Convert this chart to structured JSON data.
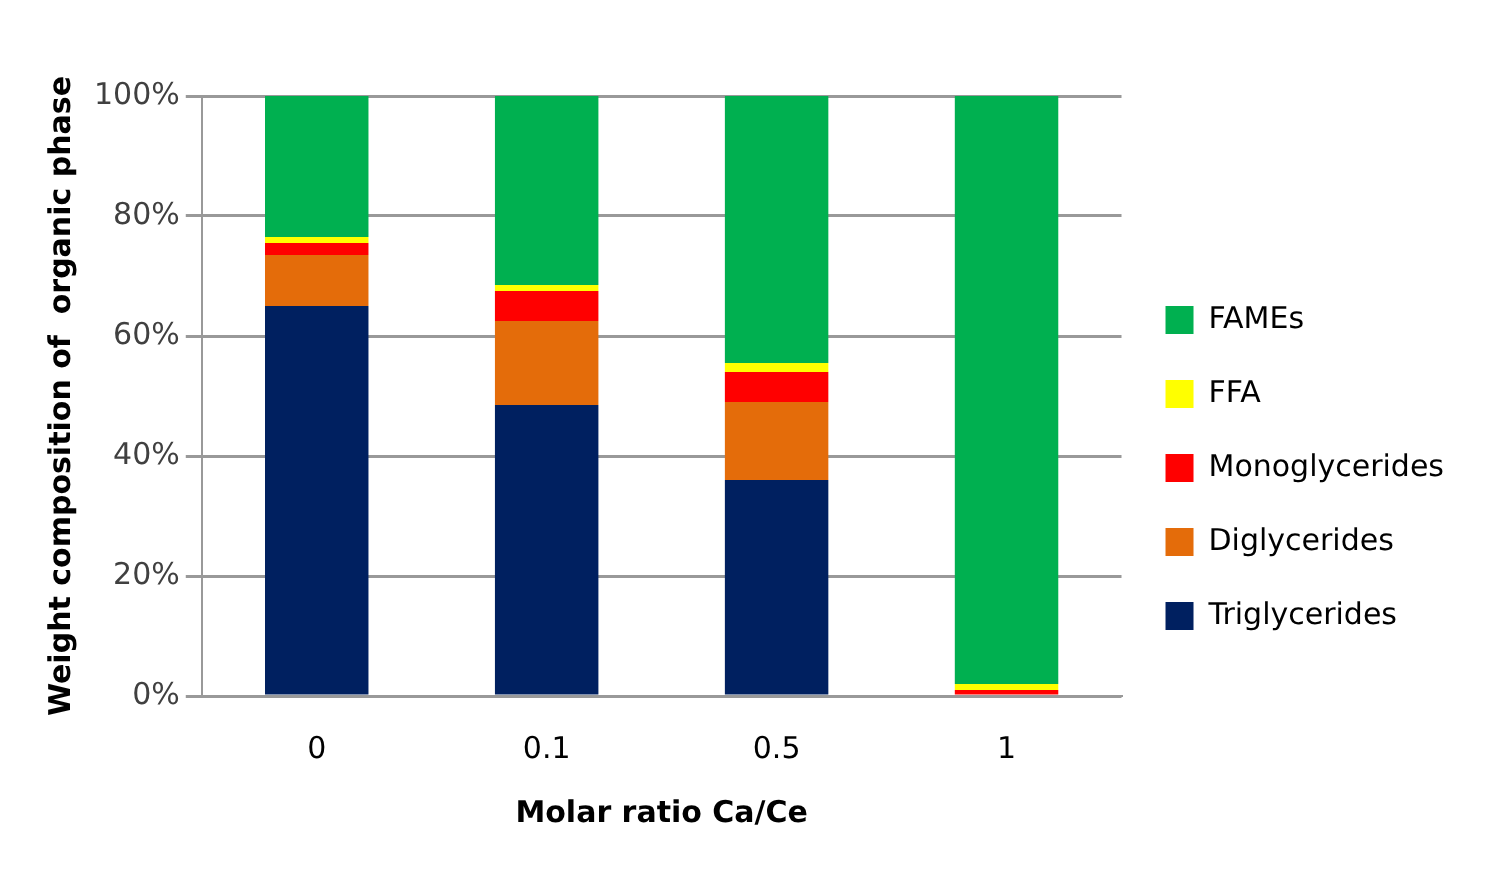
{
  "chart_data": {
    "type": "bar",
    "stacked": true,
    "xlabel": "Molar ratio Ca/Ce",
    "ylabel": "Weight composition of  organic phase",
    "categories": [
      "0",
      "0.1",
      "0.5",
      "1"
    ],
    "series": [
      {
        "name": "Triglycerides",
        "color": "#002060",
        "values": [
          65,
          48.5,
          36,
          0
        ]
      },
      {
        "name": "Diglycerides",
        "color": "#e46c0a",
        "values": [
          8.5,
          14,
          13,
          0
        ]
      },
      {
        "name": "Monoglycerides",
        "color": "#ff0000",
        "values": [
          2,
          5,
          5,
          1
        ]
      },
      {
        "name": "FFA",
        "color": "#ffff00",
        "values": [
          1,
          1,
          1.5,
          1
        ]
      },
      {
        "name": "FAMEs",
        "color": "#00b050",
        "values": [
          23.5,
          31.5,
          44.5,
          98
        ]
      }
    ],
    "ylim": [
      0,
      100
    ],
    "yticks": [
      {
        "value": 0,
        "label": "0%"
      },
      {
        "value": 20,
        "label": "20%"
      },
      {
        "value": 40,
        "label": "40%"
      },
      {
        "value": 60,
        "label": "60%"
      },
      {
        "value": 80,
        "label": "80%"
      },
      {
        "value": 100,
        "label": "100%"
      }
    ],
    "grid": "y",
    "legend": "right"
  }
}
